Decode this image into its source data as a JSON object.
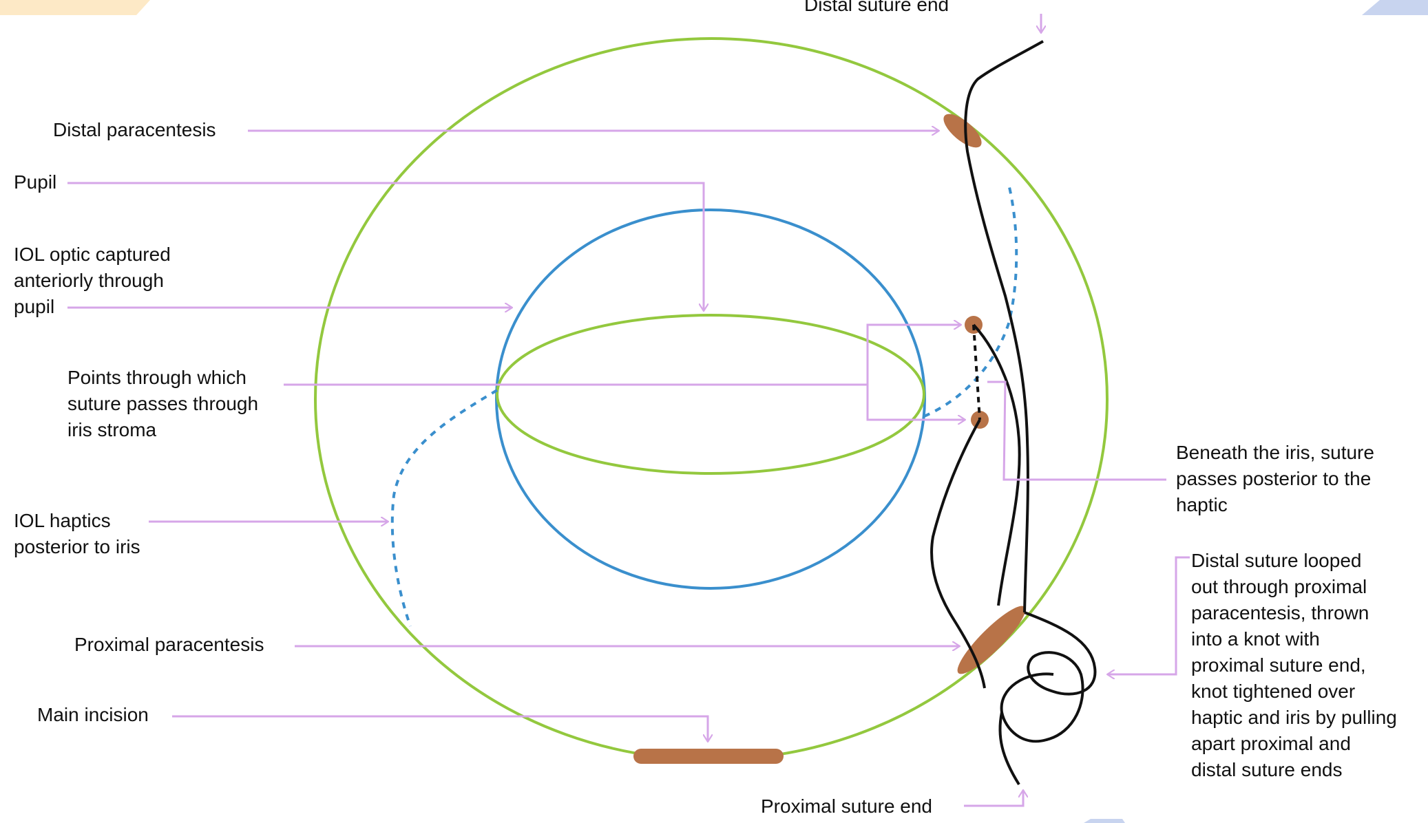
{
  "labels": {
    "distal_suture_end": "Distal suture end",
    "distal_paracentesis": "Distal paracentesis",
    "pupil": "Pupil",
    "iol_optic_captured": "IOL optic captured\nanteriorly through\npupil",
    "points_through_iris": "Points through which\nsuture passes through\niris stroma",
    "iol_haptics": "IOL haptics\nposterior to iris",
    "proximal_paracentesis": "Proximal paracentesis",
    "main_incision": "Main incision",
    "proximal_suture_end": "Proximal suture end",
    "beneath_iris": "Beneath the iris, suture\npasses posterior to the\nhaptic",
    "distal_suture_looped": "Distal suture looped\nout through proximal\nparacentesis, thrown\ninto a knot with\nproximal suture end,\nknot tightened over\nhaptic and iris by pulling\napart proximal and\ndistal suture ends"
  },
  "colors": {
    "cornea_outline": "#93c83e",
    "pupil_outline": "#3a8fcd",
    "iol_optic_outline": "#93c83e",
    "haptic_dashed": "#3a8fcd",
    "leader_lines": "#d6a6e8",
    "suture": "#111111",
    "incision": "#b87348"
  }
}
